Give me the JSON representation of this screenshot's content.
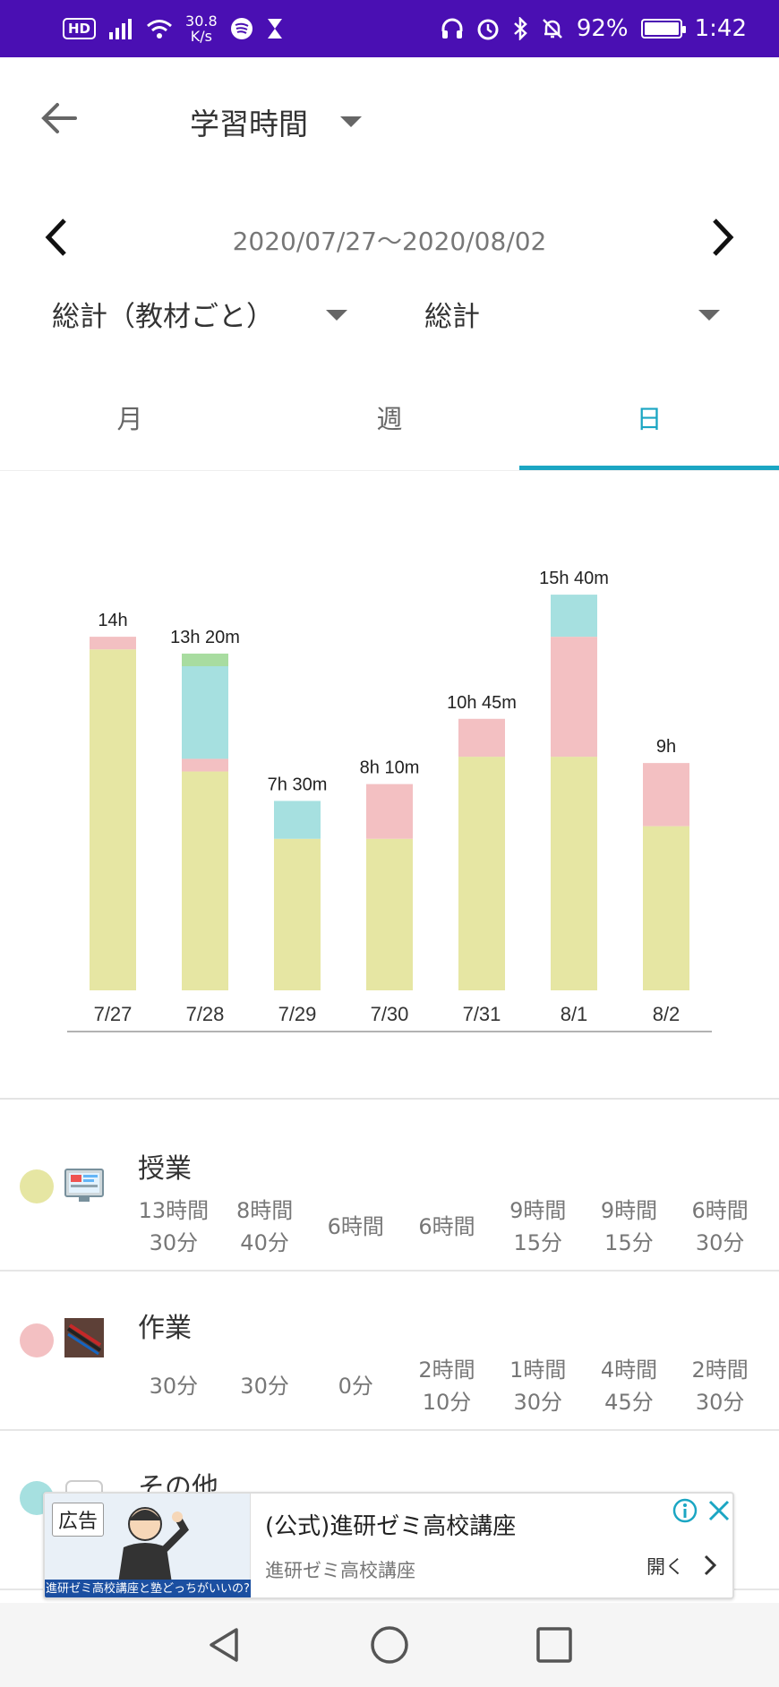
{
  "status_bar": {
    "hd": "HD",
    "net_speed_value": "30.8",
    "net_speed_unit": "K/s",
    "battery_percent": "92%",
    "battery_level": 0.92,
    "time": "1:42",
    "bg_color": "#4a0fb3"
  },
  "header": {
    "title": "学習時間"
  },
  "date_range": "2020/07/27～2020/08/02",
  "filters": {
    "left": "総計（教材ごと）",
    "right": "総計"
  },
  "tabs": [
    {
      "label": "月",
      "active": false
    },
    {
      "label": "週",
      "active": false
    },
    {
      "label": "日",
      "active": true
    }
  ],
  "accent_color": "#1ba6c3",
  "chart_data": {
    "type": "bar",
    "stacked": true,
    "categories": [
      "7/27",
      "7/28",
      "7/29",
      "7/30",
      "7/31",
      "8/1",
      "8/2"
    ],
    "total_labels": [
      "14h",
      "13h 20m",
      "7h 30m",
      "8h 10m",
      "10h 45m",
      "15h 40m",
      "9h"
    ],
    "series": [
      {
        "name": "授業",
        "color": "#e6e6a3",
        "values": [
          13.5,
          8.6667,
          6,
          6,
          9.25,
          9.25,
          6.5
        ]
      },
      {
        "name": "作業",
        "color": "#f3c0c2",
        "values": [
          0.5,
          0.5,
          0,
          2.1667,
          1.5,
          4.75,
          2.5
        ]
      },
      {
        "name": "その他",
        "color": "#a6e0e0",
        "values": [
          0,
          3.6667,
          1.5,
          0,
          0,
          1.6667,
          0
        ]
      },
      {
        "color": "#a8dca0",
        "values": [
          0,
          0.5,
          0,
          0,
          0,
          0,
          0
        ]
      }
    ],
    "ylim": [
      0,
      15.67
    ],
    "grid": false
  },
  "categories": [
    {
      "name": "授業",
      "color": "#e6e6a3",
      "icon": "monitor-icon",
      "values": [
        [
          "13時間",
          "30分"
        ],
        [
          "8時間",
          "40分"
        ],
        [
          "6時間"
        ],
        [
          "6時間"
        ],
        [
          "9時間",
          "15分"
        ],
        [
          "9時間",
          "15分"
        ],
        [
          "6時間",
          "30分"
        ]
      ]
    },
    {
      "name": "作業",
      "color": "#f3c0c2",
      "icon": "pens-icon",
      "values": [
        [
          "30分"
        ],
        [
          "30分"
        ],
        [
          "0分"
        ],
        [
          "2時間",
          "10分"
        ],
        [
          "1時間",
          "30分"
        ],
        [
          "4時間",
          "45分"
        ],
        [
          "2時間",
          "30分"
        ]
      ]
    },
    {
      "name": "その他",
      "color": "#a6e0e0",
      "icon": "blank-icon",
      "values": []
    }
  ],
  "ad": {
    "badge": "広告",
    "image_caption": "進研ゼミ高校講座と塾どっちがいいの?",
    "title": "(公式)進研ゼミ高校講座",
    "subtitle": "進研ゼミ高校講座",
    "open_label": "開く"
  }
}
